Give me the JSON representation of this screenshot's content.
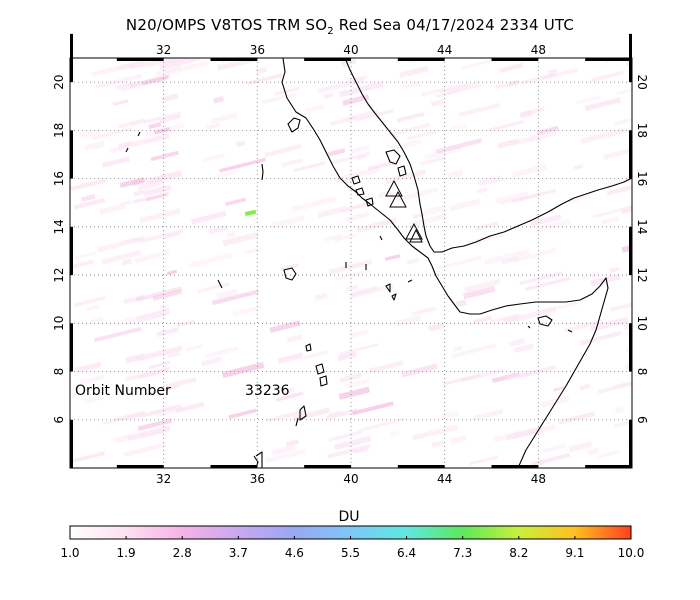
{
  "title": {
    "prefix": "N20/OMPS V8TOS TRM SO",
    "subscript": "2",
    "suffix": " Red Sea 04/17/2024 2334 UTC"
  },
  "map": {
    "lon_ticks": [
      "32",
      "36",
      "40",
      "44",
      "48"
    ],
    "lat_ticks": [
      "20",
      "18",
      "16",
      "14",
      "12",
      "10",
      "8",
      "6"
    ],
    "lon_range": [
      28,
      52
    ],
    "lat_range": [
      4,
      21
    ]
  },
  "orbit": {
    "label": "Orbit Number",
    "value": "33236"
  },
  "colorbar": {
    "title": "DU",
    "ticks": [
      "1.0",
      "1.9",
      "2.8",
      "3.7",
      "4.6",
      "5.5",
      "6.4",
      "7.3",
      "8.2",
      "9.1",
      "10.0"
    ],
    "colors": [
      "#ffffff",
      "#fde0f2",
      "#f5b3e6",
      "#c8a8f0",
      "#9aa8f2",
      "#7fc6f5",
      "#5fe8e0",
      "#5ee85c",
      "#c8f03c",
      "#ffc020",
      "#ff4020"
    ]
  },
  "colors": {
    "coastline": "#000000",
    "grid": "#7a7a7a",
    "background_noise": "#fbe6f4",
    "so2_detection": "#88ee44"
  },
  "features": {
    "volcano_marker": "triangle-icon"
  }
}
